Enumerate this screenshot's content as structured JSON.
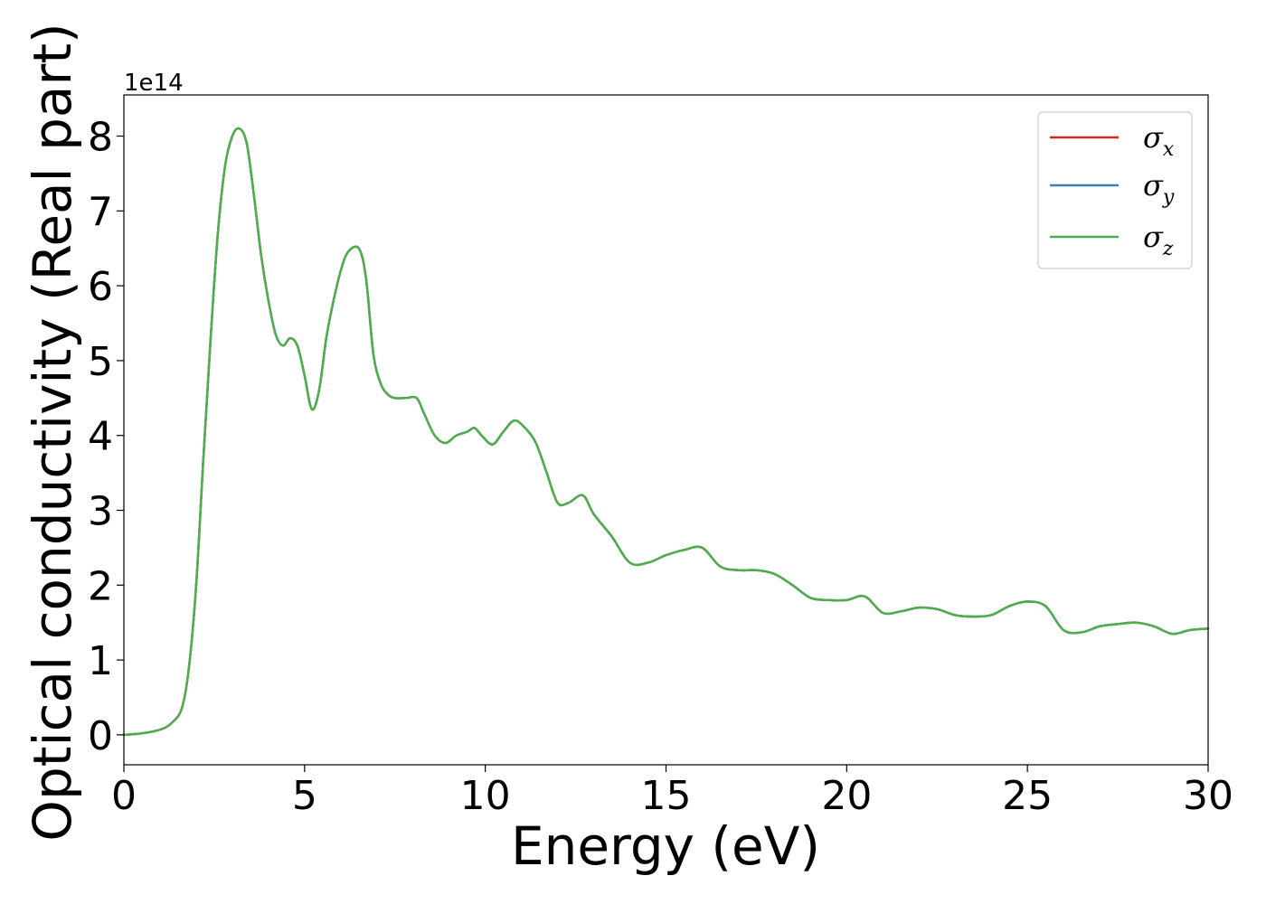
{
  "chart_data": {
    "type": "line",
    "xlabel": "Energy (eV)",
    "ylabel": "Optical conductivity (Real part)",
    "y_offset_text": "1e14",
    "xlim": [
      0,
      30
    ],
    "ylim": [
      -0.4,
      8.55
    ],
    "xticks": [
      0,
      5,
      10,
      15,
      20,
      25,
      30
    ],
    "xtick_labels": [
      "0",
      "5",
      "10",
      "15",
      "20",
      "25",
      "30"
    ],
    "yticks": [
      0,
      1,
      2,
      3,
      4,
      5,
      6,
      7,
      8
    ],
    "ytick_labels": [
      "0",
      "1",
      "2",
      "3",
      "4",
      "5",
      "6",
      "7",
      "8"
    ],
    "grid": false,
    "legend_position": "top-right",
    "series": [
      {
        "name": "σx",
        "label_base": "σ",
        "label_sub": "x",
        "color": "#d62728",
        "x": [
          0,
          0.5,
          1.0,
          1.3,
          1.6,
          1.8,
          2.0,
          2.2,
          2.4,
          2.6,
          2.8,
          3.0,
          3.2,
          3.4,
          3.6,
          3.8,
          4.0,
          4.2,
          4.4,
          4.6,
          4.8,
          5.0,
          5.2,
          5.4,
          5.6,
          5.8,
          6.0,
          6.2,
          6.5,
          6.7,
          6.9,
          7.1,
          7.3,
          7.5,
          7.8,
          8.1,
          8.3,
          8.6,
          8.9,
          9.2,
          9.5,
          9.7,
          9.9,
          10.2,
          10.5,
          10.8,
          11.1,
          11.4,
          11.7,
          12.0,
          12.3,
          12.7,
          13.0,
          13.5,
          14.0,
          14.5,
          15.0,
          15.5,
          16.0,
          16.5,
          17.0,
          17.5,
          18.0,
          18.5,
          19.0,
          19.5,
          20.0,
          20.5,
          21.0,
          21.5,
          22.0,
          22.5,
          23.0,
          23.5,
          24.0,
          24.5,
          25.0,
          25.5,
          26.0,
          26.5,
          27.0,
          27.5,
          28.0,
          28.5,
          29.0,
          29.5,
          30.0
        ],
        "y": [
          0.0,
          0.02,
          0.07,
          0.15,
          0.35,
          0.9,
          2.0,
          3.7,
          5.3,
          6.7,
          7.6,
          8.0,
          8.1,
          7.9,
          7.2,
          6.4,
          5.8,
          5.35,
          5.2,
          5.3,
          5.2,
          4.8,
          4.35,
          4.6,
          5.3,
          5.8,
          6.2,
          6.45,
          6.5,
          6.1,
          5.1,
          4.7,
          4.55,
          4.5,
          4.5,
          4.5,
          4.3,
          4.0,
          3.9,
          4.0,
          4.05,
          4.1,
          4.0,
          3.88,
          4.05,
          4.2,
          4.1,
          3.9,
          3.5,
          3.1,
          3.1,
          3.2,
          2.95,
          2.65,
          2.3,
          2.3,
          2.4,
          2.47,
          2.5,
          2.25,
          2.2,
          2.2,
          2.15,
          2.0,
          1.83,
          1.8,
          1.8,
          1.85,
          1.63,
          1.65,
          1.7,
          1.68,
          1.6,
          1.58,
          1.6,
          1.72,
          1.78,
          1.72,
          1.4,
          1.37,
          1.45,
          1.48,
          1.5,
          1.45,
          1.35,
          1.4,
          1.42
        ]
      },
      {
        "name": "σy",
        "label_base": "σ",
        "label_sub": "y",
        "color": "#3d7fb5",
        "x": [
          0,
          0.5,
          1.0,
          1.3,
          1.6,
          1.8,
          2.0,
          2.2,
          2.4,
          2.6,
          2.8,
          3.0,
          3.2,
          3.4,
          3.6,
          3.8,
          4.0,
          4.2,
          4.4,
          4.6,
          4.8,
          5.0,
          5.2,
          5.4,
          5.6,
          5.8,
          6.0,
          6.2,
          6.5,
          6.7,
          6.9,
          7.1,
          7.3,
          7.5,
          7.8,
          8.1,
          8.3,
          8.6,
          8.9,
          9.2,
          9.5,
          9.7,
          9.9,
          10.2,
          10.5,
          10.8,
          11.1,
          11.4,
          11.7,
          12.0,
          12.3,
          12.7,
          13.0,
          13.5,
          14.0,
          14.5,
          15.0,
          15.5,
          16.0,
          16.5,
          17.0,
          17.5,
          18.0,
          18.5,
          19.0,
          19.5,
          20.0,
          20.5,
          21.0,
          21.5,
          22.0,
          22.5,
          23.0,
          23.5,
          24.0,
          24.5,
          25.0,
          25.5,
          26.0,
          26.5,
          27.0,
          27.5,
          28.0,
          28.5,
          29.0,
          29.5,
          30.0
        ],
        "y": [
          0.0,
          0.02,
          0.07,
          0.15,
          0.35,
          0.9,
          2.0,
          3.7,
          5.3,
          6.7,
          7.6,
          8.0,
          8.1,
          7.9,
          7.2,
          6.4,
          5.8,
          5.35,
          5.2,
          5.3,
          5.2,
          4.8,
          4.35,
          4.6,
          5.3,
          5.8,
          6.2,
          6.45,
          6.5,
          6.1,
          5.1,
          4.7,
          4.55,
          4.5,
          4.5,
          4.5,
          4.3,
          4.0,
          3.9,
          4.0,
          4.05,
          4.1,
          4.0,
          3.88,
          4.05,
          4.2,
          4.1,
          3.9,
          3.5,
          3.1,
          3.1,
          3.2,
          2.95,
          2.65,
          2.3,
          2.3,
          2.4,
          2.47,
          2.5,
          2.25,
          2.2,
          2.2,
          2.15,
          2.0,
          1.83,
          1.8,
          1.8,
          1.85,
          1.63,
          1.65,
          1.7,
          1.68,
          1.6,
          1.58,
          1.6,
          1.72,
          1.78,
          1.72,
          1.4,
          1.37,
          1.45,
          1.48,
          1.5,
          1.45,
          1.35,
          1.4,
          1.42
        ]
      },
      {
        "name": "σz",
        "label_base": "σ",
        "label_sub": "z",
        "color": "#4daf4a",
        "x": [
          0,
          0.5,
          1.0,
          1.3,
          1.6,
          1.8,
          2.0,
          2.2,
          2.4,
          2.6,
          2.8,
          3.0,
          3.2,
          3.4,
          3.6,
          3.8,
          4.0,
          4.2,
          4.4,
          4.6,
          4.8,
          5.0,
          5.2,
          5.4,
          5.6,
          5.8,
          6.0,
          6.2,
          6.5,
          6.7,
          6.9,
          7.1,
          7.3,
          7.5,
          7.8,
          8.1,
          8.3,
          8.6,
          8.9,
          9.2,
          9.5,
          9.7,
          9.9,
          10.2,
          10.5,
          10.8,
          11.1,
          11.4,
          11.7,
          12.0,
          12.3,
          12.7,
          13.0,
          13.5,
          14.0,
          14.5,
          15.0,
          15.5,
          16.0,
          16.5,
          17.0,
          17.5,
          18.0,
          18.5,
          19.0,
          19.5,
          20.0,
          20.5,
          21.0,
          21.5,
          22.0,
          22.5,
          23.0,
          23.5,
          24.0,
          24.5,
          25.0,
          25.5,
          26.0,
          26.5,
          27.0,
          27.5,
          28.0,
          28.5,
          29.0,
          29.5,
          30.0
        ],
        "y": [
          0.0,
          0.02,
          0.07,
          0.15,
          0.35,
          0.9,
          2.0,
          3.7,
          5.3,
          6.7,
          7.6,
          8.0,
          8.1,
          7.9,
          7.2,
          6.4,
          5.8,
          5.35,
          5.2,
          5.3,
          5.2,
          4.8,
          4.35,
          4.6,
          5.3,
          5.8,
          6.2,
          6.45,
          6.5,
          6.1,
          5.1,
          4.7,
          4.55,
          4.5,
          4.5,
          4.5,
          4.3,
          4.0,
          3.9,
          4.0,
          4.05,
          4.1,
          4.0,
          3.88,
          4.05,
          4.2,
          4.1,
          3.9,
          3.5,
          3.1,
          3.1,
          3.2,
          2.95,
          2.65,
          2.3,
          2.3,
          2.4,
          2.47,
          2.5,
          2.25,
          2.2,
          2.2,
          2.15,
          2.0,
          1.83,
          1.8,
          1.8,
          1.85,
          1.63,
          1.65,
          1.7,
          1.68,
          1.6,
          1.58,
          1.6,
          1.72,
          1.78,
          1.72,
          1.4,
          1.37,
          1.45,
          1.48,
          1.5,
          1.45,
          1.35,
          1.4,
          1.42
        ]
      }
    ]
  }
}
